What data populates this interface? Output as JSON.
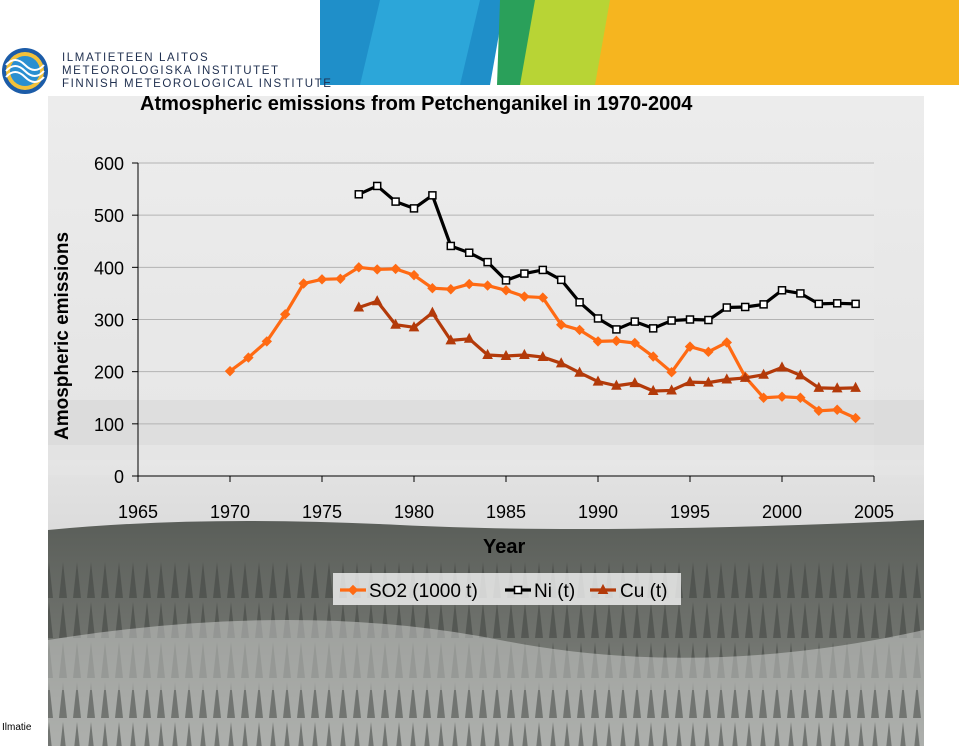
{
  "header": {
    "org_line1": "ILMATIETEEN LAITOS",
    "org_line2": "METEOROLOGISKA INSTITUTET",
    "org_line3": "FINNISH METEOROLOGICAL INSTITUTE"
  },
  "footer": {
    "text": "Ilmatie"
  },
  "colors": {
    "so2": "#ff6a13",
    "ni": "#000000",
    "cu": "#b33a0a",
    "grid": "#b3b3b3"
  },
  "chart_data": {
    "type": "line",
    "title": "Atmospheric emissions from Petchenganikel in 1970-2004",
    "xlabel": "Year",
    "ylabel": "Amospheric emissions",
    "xlim": [
      1965,
      2005
    ],
    "ylim": [
      0,
      600
    ],
    "x_ticks": [
      1965,
      1970,
      1975,
      1980,
      1985,
      1990,
      1995,
      2000,
      2005
    ],
    "y_ticks": [
      0,
      100,
      200,
      300,
      400,
      500,
      600
    ],
    "grid": "horizontal",
    "legend_position": "bottom",
    "series": [
      {
        "name": "SO2 (1000 t)",
        "marker": "diamond",
        "x": [
          1970,
          1971,
          1972,
          1973,
          1974,
          1975,
          1976,
          1977,
          1978,
          1979,
          1980,
          1981,
          1982,
          1983,
          1984,
          1985,
          1986,
          1987,
          1988,
          1989,
          1990,
          1991,
          1992,
          1993,
          1994,
          1995,
          1996,
          1997,
          1998,
          1999,
          2000,
          2001,
          2002,
          2003,
          2004
        ],
        "y": [
          201,
          227,
          258,
          310,
          369,
          377,
          378,
          400,
          396,
          397,
          385,
          360,
          358,
          368,
          365,
          356,
          344,
          342,
          290,
          280,
          258,
          259,
          255,
          229,
          199,
          248,
          238,
          256,
          190,
          150,
          152,
          150,
          125,
          127,
          111
        ]
      },
      {
        "name": "Ni (t)",
        "marker": "square",
        "x": [
          1977,
          1978,
          1979,
          1980,
          1981,
          1982,
          1983,
          1984,
          1985,
          1986,
          1987,
          1988,
          1989,
          1990,
          1991,
          1992,
          1993,
          1994,
          1995,
          1996,
          1997,
          1998,
          1999,
          2000,
          2001,
          2002,
          2003,
          2004
        ],
        "y": [
          540,
          556,
          526,
          513,
          538,
          441,
          428,
          410,
          375,
          388,
          395,
          376,
          333,
          302,
          281,
          296,
          283,
          298,
          300,
          299,
          323,
          324,
          329,
          356,
          350,
          330,
          331,
          330
        ]
      },
      {
        "name": "Cu (t)",
        "marker": "triangle",
        "x": [
          1977,
          1978,
          1979,
          1980,
          1981,
          1982,
          1983,
          1984,
          1985,
          1986,
          1987,
          1988,
          1989,
          1990,
          1991,
          1992,
          1993,
          1994,
          1995,
          1996,
          1997,
          1998,
          1999,
          2000,
          2001,
          2002,
          2003,
          2004
        ],
        "y": [
          323,
          335,
          290,
          285,
          313,
          260,
          263,
          232,
          230,
          232,
          228,
          216,
          198,
          181,
          173,
          178,
          163,
          164,
          180,
          179,
          185,
          188,
          194,
          208,
          193,
          169,
          168,
          169
        ]
      }
    ]
  }
}
